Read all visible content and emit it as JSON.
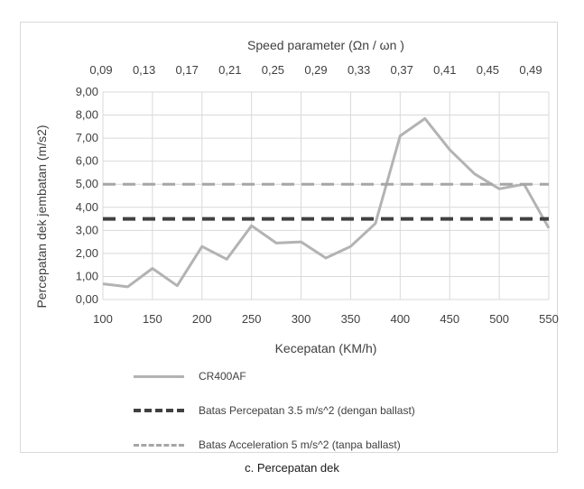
{
  "chart_data": {
    "type": "line",
    "title": "",
    "xlabel": "Kecepatan (KM/h)",
    "ylabel": "Percepatan dek jembatan (m/s2)",
    "secondary_xlabel": "Speed parameter (Ωn / ωn )",
    "xlim": [
      100,
      550
    ],
    "ylim": [
      0,
      9
    ],
    "x_ticks": [
      "100",
      "150",
      "200",
      "250",
      "300",
      "350",
      "400",
      "450",
      "500",
      "550"
    ],
    "y_ticks": [
      "0,00",
      "1,00",
      "2,00",
      "3,00",
      "4,00",
      "5,00",
      "6,00",
      "7,00",
      "8,00",
      "9,00"
    ],
    "secondary_x_ticks": [
      "0,09",
      "0,13",
      "0,17",
      "0,21",
      "0,25",
      "0,29",
      "0,33",
      "0,37",
      "0,41",
      "0,45",
      "0,49"
    ],
    "grid": true,
    "legend_position": "bottom",
    "series": [
      {
        "name": "CR400AF",
        "style": "solid",
        "color": "#b3b3b3",
        "x": [
          100,
          125,
          150,
          175,
          200,
          225,
          250,
          275,
          300,
          325,
          350,
          375,
          400,
          425,
          450,
          475,
          500,
          525,
          550
        ],
        "y": [
          0.68,
          0.55,
          1.35,
          0.6,
          2.3,
          1.75,
          3.2,
          2.45,
          2.5,
          1.8,
          2.3,
          3.3,
          7.1,
          7.85,
          6.5,
          5.45,
          4.8,
          5.0,
          3.1
        ]
      },
      {
        "name": "Batas Percepatan 3.5 m/s^2 (dengan ballast)",
        "style": "dashed",
        "color": "#404040",
        "x": [
          100,
          550
        ],
        "y": [
          3.5,
          3.5
        ]
      },
      {
        "name": "Batas Acceleration 5 m/s^2 (tanpa ballast)",
        "style": "dashed",
        "color": "#a6a6a6",
        "x": [
          100,
          550
        ],
        "y": [
          5,
          5
        ]
      }
    ]
  },
  "caption": "c. Percepatan dek"
}
